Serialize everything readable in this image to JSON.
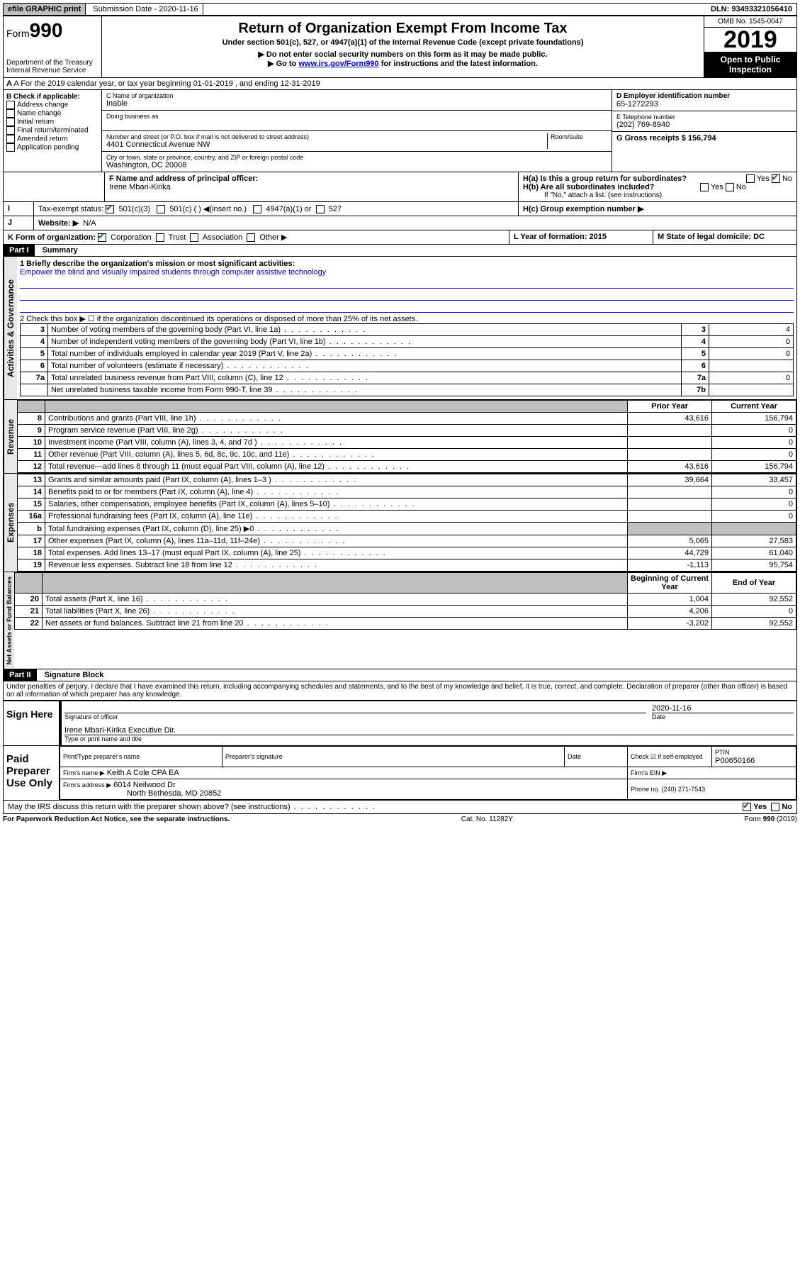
{
  "topbar": {
    "efile": "efile GRAPHIC print",
    "submission_label": "Submission Date - 2020-11-16",
    "dln": "DLN: 93493321056410"
  },
  "header": {
    "form_label": "Form",
    "form_num": "990",
    "dept": "Department of the Treasury",
    "irs": "Internal Revenue Service",
    "title": "Return of Organization Exempt From Income Tax",
    "subtitle": "Under section 501(c), 527, or 4947(a)(1) of the Internal Revenue Code (except private foundations)",
    "note1": "▶ Do not enter social security numbers on this form as it may be made public.",
    "note2_pre": "▶ Go to ",
    "note2_link": "www.irs.gov/Form990",
    "note2_post": " for instructions and the latest information.",
    "omb": "OMB No. 1545-0047",
    "year": "2019",
    "open": "Open to Public Inspection"
  },
  "row_a": "A For the 2019 calendar year, or tax year beginning 01-01-2019   , and ending 12-31-2019",
  "box_b": {
    "label": "B Check if applicable:",
    "items": [
      "Address change",
      "Name change",
      "Initial return",
      "Final return/terminated",
      "Amended return",
      "Application pending"
    ]
  },
  "box_c": {
    "name_label": "C Name of organization",
    "name": "Inable",
    "dba_label": "Doing business as",
    "addr_label": "Number and street (or P.O. box if mail is not delivered to street address)",
    "room_label": "Room/suite",
    "addr": "4401 Connecticut Avenue NW",
    "city_label": "City or town, state or province, country, and ZIP or foreign postal code",
    "city": "Washington, DC  20008"
  },
  "box_d": {
    "label": "D Employer identification number",
    "value": "65-1272293"
  },
  "box_e": {
    "label": "E Telephone number",
    "value": "(202) 769-8940"
  },
  "box_g": {
    "label": "G Gross receipts $ 156,794"
  },
  "box_f": {
    "label": "F  Name and address of principal officer:",
    "name": "Irene Mbari-Kirika"
  },
  "box_h": {
    "a": "H(a)  Is this a group return for subordinates?",
    "b": "H(b)  Are all subordinates included?",
    "b_note": "If \"No,\" attach a list. (see instructions)",
    "c": "H(c)  Group exemption number ▶",
    "yes": "Yes",
    "no": "No"
  },
  "box_i": {
    "label": "Tax-exempt status:",
    "opts": [
      "501(c)(3)",
      "501(c) (  ) ◀(insert no.)",
      "4947(a)(1) or",
      "527"
    ]
  },
  "box_j": {
    "label": "Website: ▶",
    "value": "N/A"
  },
  "box_k": {
    "label": "K Form of organization:",
    "opts": [
      "Corporation",
      "Trust",
      "Association",
      "Other ▶"
    ]
  },
  "box_l": {
    "label": "L Year of formation: 2015"
  },
  "box_m": {
    "label": "M State of legal domicile: DC"
  },
  "part1": {
    "header": "Part I",
    "title": "Summary",
    "side_ag": "Activities & Governance",
    "side_rev": "Revenue",
    "side_exp": "Expenses",
    "side_net": "Net Assets or Fund Balances",
    "line1_label": "1  Briefly describe the organization's mission or most significant activities:",
    "line1_text": "Empower the blind and visually impaired students through computer assistive technology",
    "line2": "2    Check this box ▶ ☐  if the organization discontinued its operations or disposed of more than 25% of its net assets.",
    "rows_ag": [
      {
        "n": "3",
        "t": "Number of voting members of the governing body (Part VI, line 1a)",
        "k": "3",
        "v": "4"
      },
      {
        "n": "4",
        "t": "Number of independent voting members of the governing body (Part VI, line 1b)",
        "k": "4",
        "v": "0"
      },
      {
        "n": "5",
        "t": "Total number of individuals employed in calendar year 2019 (Part V, line 2a)",
        "k": "5",
        "v": "0"
      },
      {
        "n": "6",
        "t": "Total number of volunteers (estimate if necessary)",
        "k": "6",
        "v": ""
      },
      {
        "n": "7a",
        "t": "Total unrelated business revenue from Part VIII, column (C), line 12",
        "k": "7a",
        "v": "0"
      },
      {
        "n": "",
        "t": "Net unrelated business taxable income from Form 990-T, line 39",
        "k": "7b",
        "v": ""
      }
    ],
    "col_prior": "Prior Year",
    "col_current": "Current Year",
    "rows_rev": [
      {
        "n": "8",
        "t": "Contributions and grants (Part VIII, line 1h)",
        "p": "43,616",
        "c": "156,794"
      },
      {
        "n": "9",
        "t": "Program service revenue (Part VIII, line 2g)",
        "p": "",
        "c": "0"
      },
      {
        "n": "10",
        "t": "Investment income (Part VIII, column (A), lines 3, 4, and 7d )",
        "p": "",
        "c": "0"
      },
      {
        "n": "11",
        "t": "Other revenue (Part VIII, column (A), lines 5, 6d, 8c, 9c, 10c, and 11e)",
        "p": "",
        "c": "0"
      },
      {
        "n": "12",
        "t": "Total revenue—add lines 8 through 11 (must equal Part VIII, column (A), line 12)",
        "p": "43,616",
        "c": "156,794"
      }
    ],
    "rows_exp": [
      {
        "n": "13",
        "t": "Grants and similar amounts paid (Part IX, column (A), lines 1–3 )",
        "p": "39,664",
        "c": "33,457"
      },
      {
        "n": "14",
        "t": "Benefits paid to or for members (Part IX, column (A), line 4)",
        "p": "",
        "c": "0"
      },
      {
        "n": "15",
        "t": "Salaries, other compensation, employee benefits (Part IX, column (A), lines 5–10)",
        "p": "",
        "c": "0"
      },
      {
        "n": "16a",
        "t": "Professional fundraising fees (Part IX, column (A), line 11e)",
        "p": "",
        "c": "0"
      },
      {
        "n": "b",
        "t": "Total fundraising expenses (Part IX, column (D), line 25) ▶0",
        "p": "shade",
        "c": "shade"
      },
      {
        "n": "17",
        "t": "Other expenses (Part IX, column (A), lines 11a–11d, 11f–24e)",
        "p": "5,065",
        "c": "27,583"
      },
      {
        "n": "18",
        "t": "Total expenses. Add lines 13–17 (must equal Part IX, column (A), line 25)",
        "p": "44,729",
        "c": "61,040"
      },
      {
        "n": "19",
        "t": "Revenue less expenses. Subtract line 18 from line 12",
        "p": "-1,113",
        "c": "95,754"
      }
    ],
    "col_begin": "Beginning of Current Year",
    "col_end": "End of Year",
    "rows_net": [
      {
        "n": "20",
        "t": "Total assets (Part X, line 16)",
        "p": "1,004",
        "c": "92,552"
      },
      {
        "n": "21",
        "t": "Total liabilities (Part X, line 26)",
        "p": "4,206",
        "c": "0"
      },
      {
        "n": "22",
        "t": "Net assets or fund balances. Subtract line 21 from line 20",
        "p": "-3,202",
        "c": "92,552"
      }
    ]
  },
  "part2": {
    "header": "Part II",
    "title": "Signature Block",
    "perjury": "Under penalties of perjury, I declare that I have examined this return, including accompanying schedules and statements, and to the best of my knowledge and belief, it is true, correct, and complete. Declaration of preparer (other than officer) is based on all information of which preparer has any knowledge.",
    "sign_here": "Sign Here",
    "sig_officer": "Signature of officer",
    "date_label": "Date",
    "date": "2020-11-16",
    "officer_name": "Irene Mbari-Kirika  Executive Dir.",
    "type_name": "Type or print name and title",
    "paid": "Paid Preparer Use Only",
    "prep_name_label": "Print/Type preparer's name",
    "prep_sig_label": "Preparer's signature",
    "check_self": "Check ☑ if self-employed",
    "ptin_label": "PTIN",
    "ptin": "P00650166",
    "firm_name_label": "Firm's name    ▶",
    "firm_name": "Keith A Cole CPA EA",
    "firm_ein_label": "Firm's EIN ▶",
    "firm_addr_label": "Firm's address ▶",
    "firm_addr1": "6014 Neilwood Dr",
    "firm_addr2": "North Bethesda, MD  20852",
    "phone_label": "Phone no. (240) 271-7543",
    "discuss": "May the IRS discuss this return with the preparer shown above? (see instructions)",
    "yes": "Yes",
    "no": "No"
  },
  "footer": {
    "paperwork": "For Paperwork Reduction Act Notice, see the separate instructions.",
    "cat": "Cat. No. 11282Y",
    "form": "Form 990 (2019)"
  }
}
